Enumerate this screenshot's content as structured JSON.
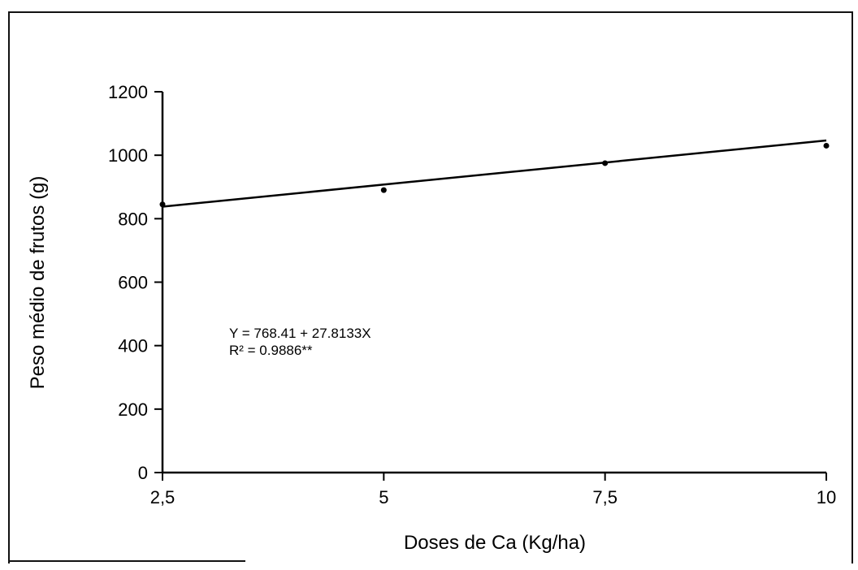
{
  "chart_data": {
    "type": "scatter",
    "xlabel": "Doses de Ca (Kg/ha)",
    "ylabel": "Peso médio de frutos (g)",
    "x_ticks": [
      "2,5",
      "5",
      "7,5",
      "10"
    ],
    "x_tick_values": [
      2.5,
      5,
      7.5,
      10
    ],
    "y_ticks": [
      "0",
      "200",
      "400",
      "600",
      "800",
      "1000",
      "1200"
    ],
    "y_tick_values": [
      0,
      200,
      400,
      600,
      800,
      1000,
      1200
    ],
    "xlim": [
      2.5,
      10
    ],
    "ylim": [
      0,
      1200
    ],
    "points": [
      {
        "x": 2.5,
        "y": 845
      },
      {
        "x": 5,
        "y": 890
      },
      {
        "x": 7.5,
        "y": 975
      },
      {
        "x": 10,
        "y": 1030
      }
    ],
    "trendline": {
      "intercept": 768.41,
      "slope": 27.8133
    },
    "annotations": {
      "equation": "Y = 768.41 + 27.8133X",
      "r2": "R² = 0.9886**"
    },
    "grid": false,
    "legend": "none"
  }
}
